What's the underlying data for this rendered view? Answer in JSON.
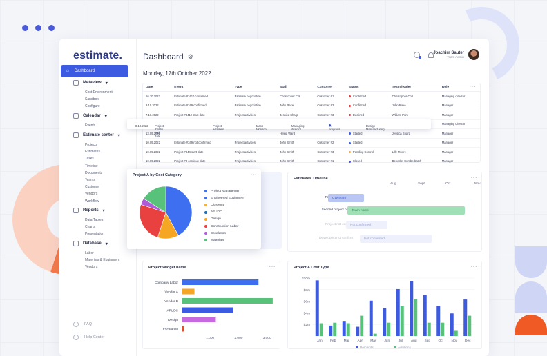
{
  "app": {
    "logo": "estimate.",
    "title": "Dashboard",
    "date": "Monday, 17th October 2022"
  },
  "user": {
    "name": "Joachim Sauter",
    "role": "Team Admin"
  },
  "sidebar": {
    "active": "Dashboard",
    "sections": [
      {
        "label": "Metaview",
        "items": [
          "Cost Environment",
          "Sandbox",
          "Configure"
        ]
      },
      {
        "label": "Calendar",
        "items": [
          "Events"
        ]
      },
      {
        "label": "Estimate center",
        "items": [
          "Projects",
          "Estimates",
          "Tasks",
          "Timeline",
          "Documents",
          "Teams",
          "Customer",
          "Vendors",
          "Workflow"
        ]
      },
      {
        "label": "Reports",
        "items": [
          "Data Tables",
          "Charts",
          "Presentation"
        ]
      },
      {
        "label": "Database",
        "items": [
          "Labor",
          "Materials & Equipment",
          "Vendors"
        ]
      }
    ],
    "bottom": [
      "FAQ",
      "Help Center"
    ]
  },
  "table": {
    "columns": [
      "Date",
      "Event",
      "Type",
      "Staff",
      "Customer",
      "Status",
      "Team leader",
      "Role"
    ],
    "rows": [
      [
        "16.10.2022",
        "Estimate #3410 confirmed",
        "Estimate negotiation",
        "Christopher Coll",
        "Customer #1",
        "Confirmed",
        "Christopher Coll",
        "Managing director"
      ],
      [
        "9.10.2022",
        "Estimate #349 confirmed",
        "Estimate negotiation",
        "John Rake",
        "Customer #2",
        "Confirmed",
        "John Rake",
        "Manager"
      ],
      [
        "7.10.2022",
        "Project #3412 start date",
        "Project activities",
        "Jessica Sharp",
        "Customer #3",
        "Declined",
        "William Prim",
        "Manager"
      ],
      [
        "",
        "",
        "",
        "",
        "",
        "",
        "",
        "Managing director"
      ],
      [
        "13.09.2022",
        "",
        "",
        "Helga Ward",
        "",
        "Started",
        "Jessica Sharp",
        "Manager"
      ],
      [
        "10.09.2022",
        "Estimate #349 not confirmed",
        "Project activities",
        "John Smith",
        "Customer #2",
        "Started",
        "",
        "Manager"
      ],
      [
        "10.09.2022",
        "Project #344 start date",
        "Project activities",
        "John Smith",
        "Customer #3",
        "Pending Control",
        "Lilly Moore",
        "Manager"
      ],
      [
        "10.09.2022",
        "Project #3 continue date",
        "Project activities",
        "John Smith",
        "Customer #1",
        "Closed",
        "Benedict Cumberbatch",
        "Manager"
      ]
    ],
    "floating_row": [
      "8.10.2022",
      "Project #3410 end date",
      "Project activities",
      "Jacob Johnson",
      "Managing director",
      "In progress",
      "Design Manufacturing"
    ]
  },
  "status_colors": {
    "Confirmed": "#e03a3a",
    "Declined": "#e03a3a",
    "Started": "#3d5be0",
    "Pending Control": "#f5a623",
    "Closed": "#3d5be0",
    "In progress": "#3d5be0"
  },
  "pie": {
    "title": "Project A by Cost Category",
    "chart_data": {
      "type": "pie",
      "slices": [
        {
          "label": "Project Managemen",
          "value": 42,
          "color": "#3d6ff0"
        },
        {
          "label": "Engineered Equipment",
          "value": 0,
          "color": "#3d6ff0"
        },
        {
          "label": "Closeout",
          "value": 0,
          "color": "#f2b134"
        },
        {
          "label": "AFUDC",
          "value": 0,
          "color": "#1f6fb5"
        },
        {
          "label": "Design",
          "value": 13,
          "color": "#f5a623"
        },
        {
          "label": "Construction Labor",
          "value": 25,
          "color": "#e94040"
        },
        {
          "label": "Escalation",
          "value": 4,
          "color": "#b05cd8"
        },
        {
          "label": "Materials",
          "value": 16,
          "color": "#58c27a"
        }
      ]
    }
  },
  "timeline": {
    "title": "Estimates Timeline",
    "months": [
      "Aug",
      "Sept",
      "Oct",
      "Nov",
      "Dec"
    ],
    "rows": [
      {
        "label": "Project to Estimate",
        "bar": "CW team",
        "faded": false
      },
      {
        "label": "Second project name",
        "bar": "Team name",
        "faded": false
      },
      {
        "label": "Project not confirm",
        "bar": "Not confirmed",
        "faded": true
      },
      {
        "label": "Developing not confirm",
        "bar": "Not confirmed",
        "faded": true
      }
    ]
  },
  "hbar": {
    "title": "Project Widget name",
    "chart_data": {
      "type": "bar",
      "orientation": "horizontal",
      "categories": [
        "Company Labor",
        "Vendor A",
        "Vendor B",
        "AFUDC",
        "Design",
        "Escalation"
      ],
      "values": [
        2700,
        450,
        3200,
        1800,
        1200,
        80
      ],
      "colors": [
        "#3d6ff0",
        "#f5a623",
        "#58c27a",
        "#3d5be0",
        "#c869e0",
        "#e94a1f"
      ],
      "xticks": [
        "1.000",
        "2.000",
        "3.000"
      ],
      "xlim": [
        0,
        3300
      ]
    }
  },
  "vbar": {
    "title": "Project A Cost Type",
    "chart_data": {
      "type": "bar",
      "categories": [
        "Jan",
        "Feb",
        "Mar",
        "Apr",
        "May",
        "Jun",
        "Jul",
        "Aug",
        "Sep",
        "Oct",
        "Nov",
        "Dec"
      ],
      "series": [
        {
          "name": "Remands",
          "color": "#3d5be0",
          "values": [
            9.6,
            1.8,
            2.6,
            1.6,
            6.1,
            4.8,
            8.1,
            9.5,
            7.1,
            5.2,
            3.9,
            6.3
          ]
        },
        {
          "name": "Additions",
          "color": "#58c27a",
          "values": [
            2.2,
            2.3,
            2.2,
            3.5,
            0.4,
            2.3,
            5.2,
            6.4,
            2.3,
            2.3,
            0.9,
            3.5
          ]
        }
      ],
      "yticks": [
        "$10m",
        "$8m",
        "$6m",
        "$4m",
        "$2m"
      ],
      "ylim": [
        0,
        10
      ]
    }
  }
}
